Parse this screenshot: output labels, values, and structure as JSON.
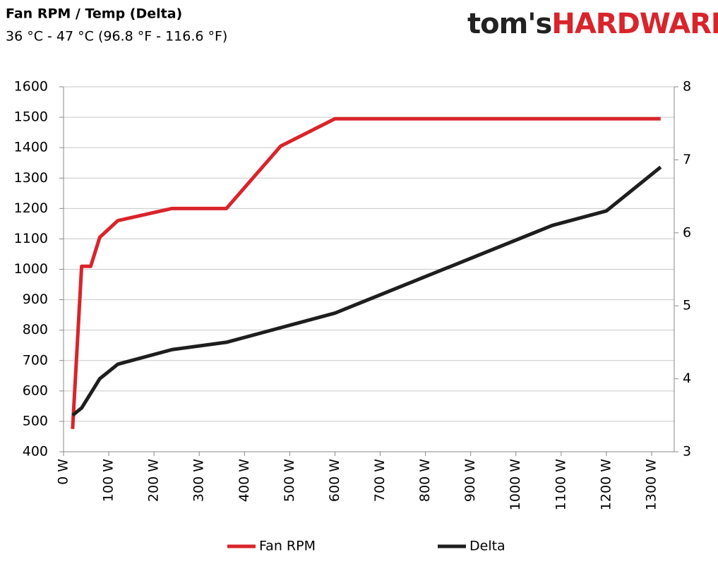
{
  "chart_data": {
    "type": "line",
    "title": "Fan RPM / Temp (Delta)",
    "subtitle": "36 °C - 47 °C (96.8 °F - 116.6 °F)",
    "brand": {
      "prefix": "tom's",
      "name": "HARDWARE"
    },
    "xlim": [
      0,
      1350
    ],
    "xticks": [
      {
        "value": 0,
        "label": "0 W"
      },
      {
        "value": 100,
        "label": "100 W"
      },
      {
        "value": 200,
        "label": "200 W"
      },
      {
        "value": 300,
        "label": "300 W"
      },
      {
        "value": 400,
        "label": "400 W"
      },
      {
        "value": 500,
        "label": "500 W"
      },
      {
        "value": 600,
        "label": "600 W"
      },
      {
        "value": 700,
        "label": "700 W"
      },
      {
        "value": 800,
        "label": "800 W"
      },
      {
        "value": 900,
        "label": "900 W"
      },
      {
        "value": 1000,
        "label": "1000 W"
      },
      {
        "value": 1100,
        "label": "1100 W"
      },
      {
        "value": 1200,
        "label": "1200 W"
      },
      {
        "value": 1300,
        "label": "1300 W"
      }
    ],
    "ylim": [
      400,
      1600
    ],
    "yticks": [
      400,
      500,
      600,
      700,
      800,
      900,
      1000,
      1100,
      1200,
      1300,
      1400,
      1500,
      1600
    ],
    "y2lim": [
      3,
      8
    ],
    "y2ticks": [
      3,
      4,
      5,
      6,
      7,
      8
    ],
    "grid": true,
    "legend": "bottom",
    "series": [
      {
        "name": "Fan RPM",
        "color": "#d9242b",
        "x": [
          20,
          40,
          60,
          80,
          120,
          240,
          360,
          480,
          600,
          1320
        ],
        "values": [
          475,
          1010,
          1010,
          1105,
          1160,
          1200,
          1200,
          1405,
          1495,
          1495
        ]
      },
      {
        "name": "Delta",
        "color": "#1e1e1e",
        "axis": "y2",
        "x": [
          20,
          40,
          80,
          120,
          240,
          360,
          600,
          1080,
          1200,
          1320
        ],
        "values": [
          3.5,
          3.6,
          4.0,
          4.2,
          4.4,
          4.5,
          4.9,
          6.1,
          6.3,
          6.9
        ]
      }
    ]
  }
}
